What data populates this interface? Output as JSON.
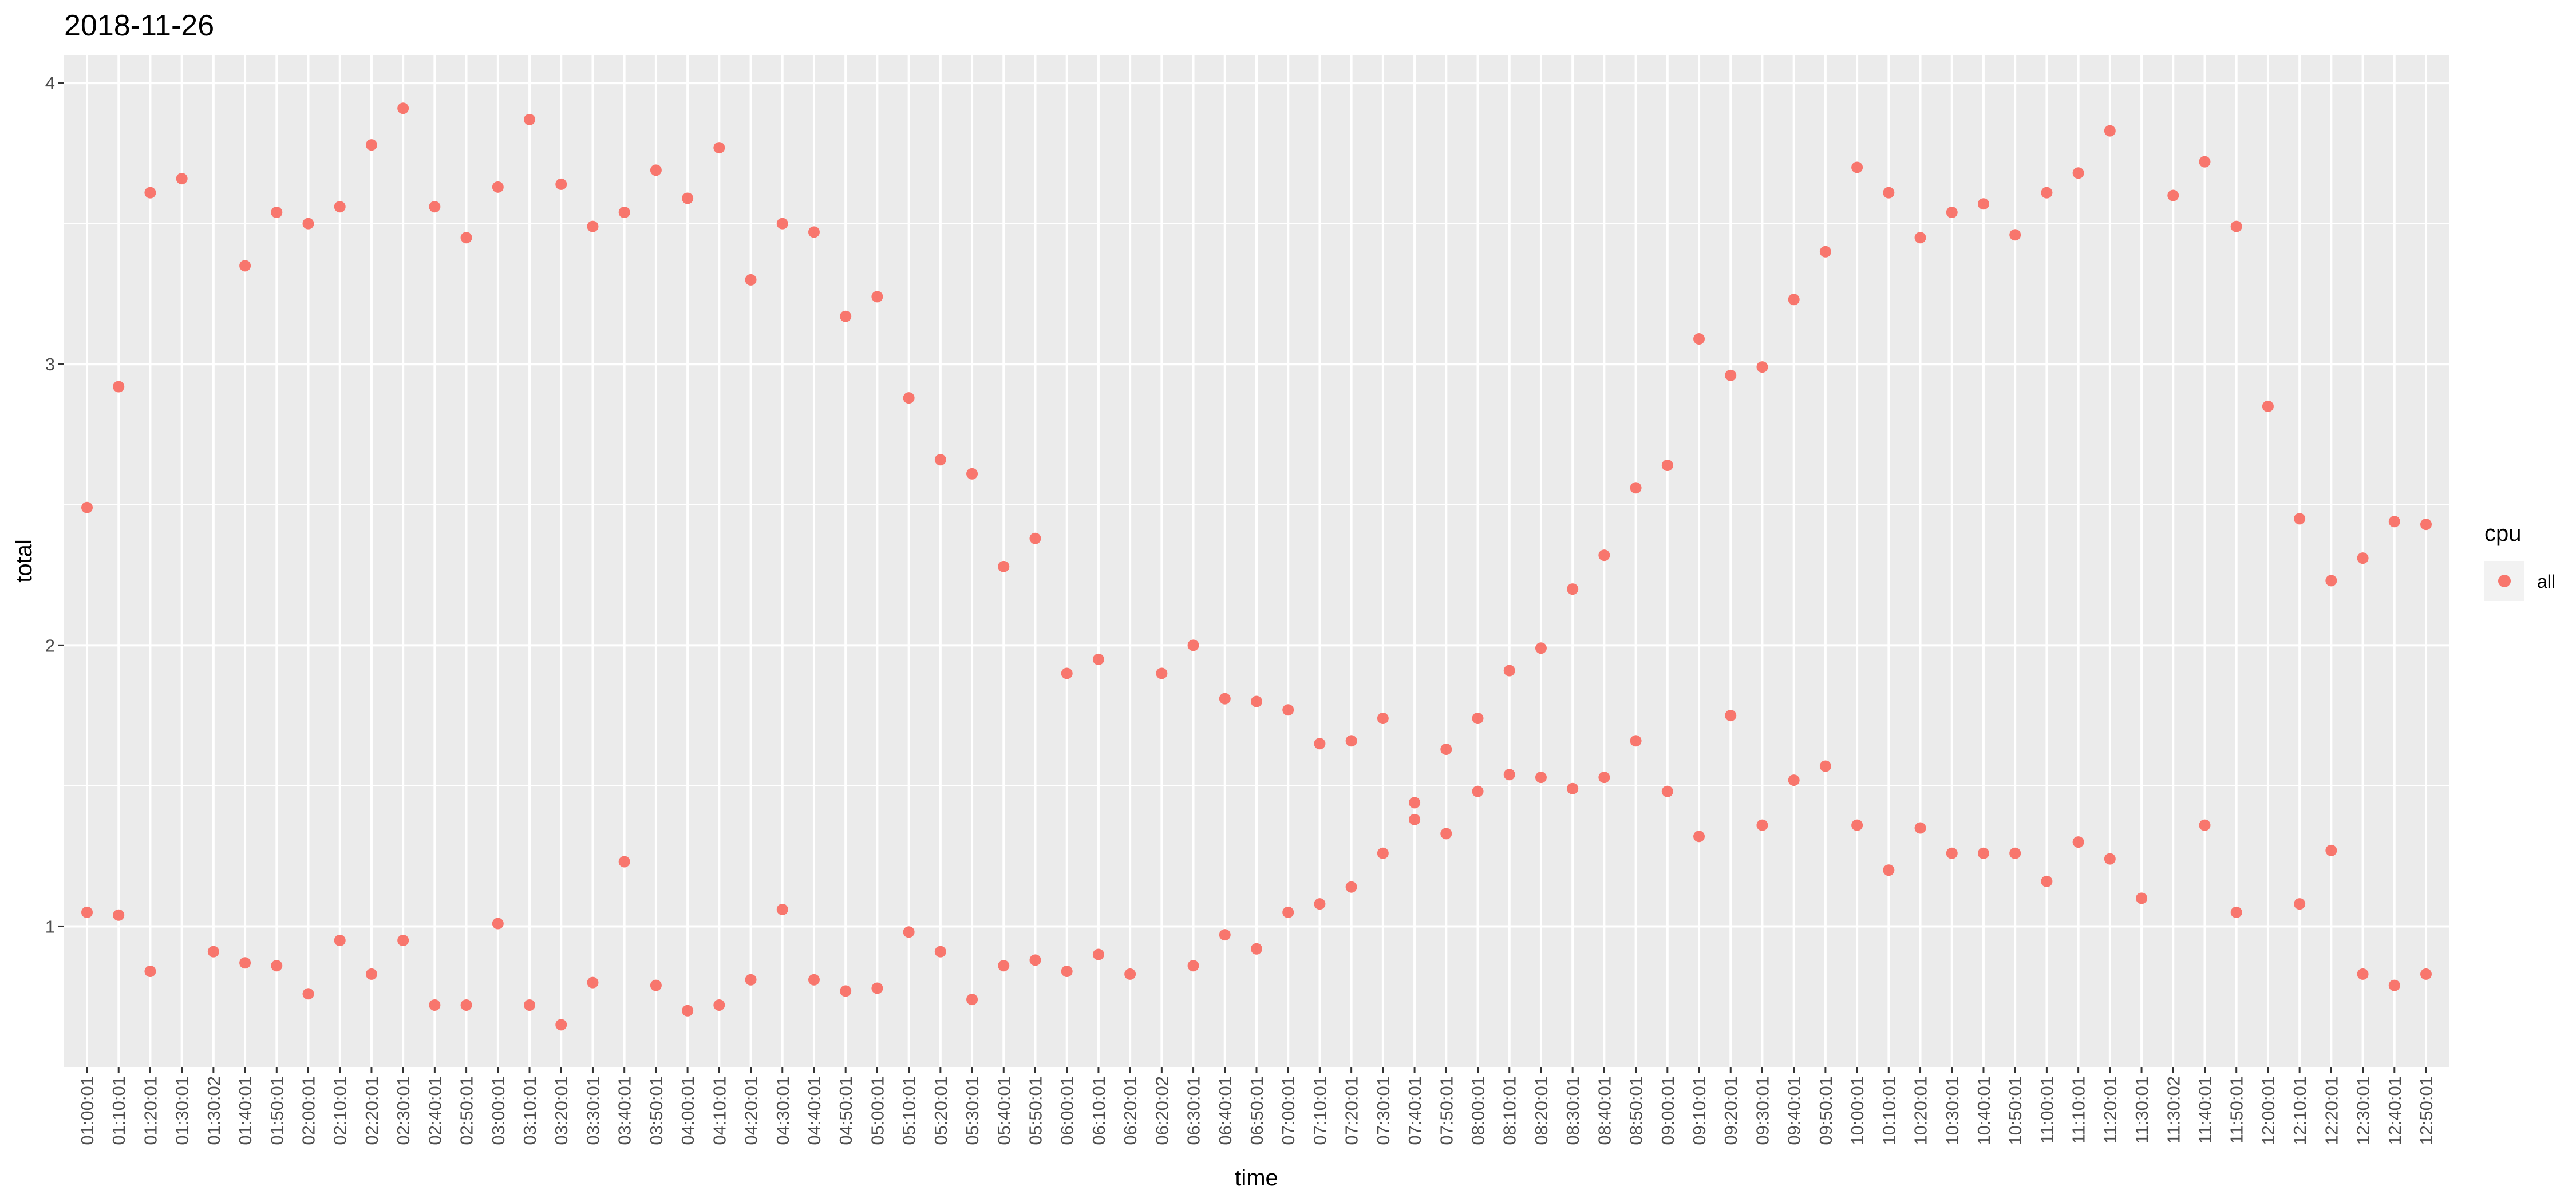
{
  "chart_data": {
    "type": "scatter",
    "title": "2018-11-26",
    "xlabel": "time",
    "ylabel": "total",
    "x_categories": [
      "01:00:01",
      "01:10:01",
      "01:20:01",
      "01:30:01",
      "01:30:02",
      "01:40:01",
      "01:50:01",
      "02:00:01",
      "02:10:01",
      "02:20:01",
      "02:30:01",
      "02:40:01",
      "02:50:01",
      "03:00:01",
      "03:10:01",
      "03:20:01",
      "03:30:01",
      "03:40:01",
      "03:50:01",
      "04:00:01",
      "04:10:01",
      "04:20:01",
      "04:30:01",
      "04:40:01",
      "04:50:01",
      "05:00:01",
      "05:10:01",
      "05:20:01",
      "05:30:01",
      "05:40:01",
      "05:50:01",
      "06:00:01",
      "06:10:01",
      "06:20:01",
      "06:20:02",
      "06:30:01",
      "06:40:01",
      "06:50:01",
      "07:00:01",
      "07:10:01",
      "07:20:01",
      "07:30:01",
      "07:40:01",
      "07:50:01",
      "08:00:01",
      "08:10:01",
      "08:20:01",
      "08:30:01",
      "08:40:01",
      "08:50:01",
      "09:00:01",
      "09:10:01",
      "09:20:01",
      "09:30:01",
      "09:40:01",
      "09:50:01",
      "10:00:01",
      "10:10:01",
      "10:20:01",
      "10:30:01",
      "10:40:01",
      "10:50:01",
      "11:00:01",
      "11:10:01",
      "11:20:01",
      "11:30:01",
      "11:30:02",
      "11:40:01",
      "11:50:01",
      "12:00:01",
      "12:10:01",
      "12:20:01",
      "12:30:01",
      "12:40:01",
      "12:50:01"
    ],
    "y_ticks": [
      1,
      2,
      3,
      4
    ],
    "ylim": [
      0.5,
      4.1
    ],
    "grid": true,
    "legend": {
      "title": "cpu",
      "position": "right",
      "entries": [
        "all"
      ]
    },
    "series": [
      {
        "name": "all",
        "color": "#F8766D",
        "points": [
          [
            "01:00:01",
            2.49
          ],
          [
            "01:00:01",
            1.05
          ],
          [
            "01:10:01",
            2.92
          ],
          [
            "01:10:01",
            1.04
          ],
          [
            "01:20:01",
            3.61
          ],
          [
            "01:20:01",
            0.84
          ],
          [
            "01:30:01",
            3.66
          ],
          [
            "01:30:02",
            0.91
          ],
          [
            "01:40:01",
            3.35
          ],
          [
            "01:40:01",
            0.87
          ],
          [
            "01:50:01",
            3.54
          ],
          [
            "01:50:01",
            0.86
          ],
          [
            "02:00:01",
            3.5
          ],
          [
            "02:00:01",
            0.76
          ],
          [
            "02:10:01",
            3.56
          ],
          [
            "02:10:01",
            0.95
          ],
          [
            "02:20:01",
            3.78
          ],
          [
            "02:20:01",
            0.83
          ],
          [
            "02:30:01",
            3.91
          ],
          [
            "02:30:01",
            0.95
          ],
          [
            "02:40:01",
            3.56
          ],
          [
            "02:40:01",
            0.72
          ],
          [
            "02:50:01",
            3.45
          ],
          [
            "02:50:01",
            0.72
          ],
          [
            "03:00:01",
            3.63
          ],
          [
            "03:00:01",
            1.01
          ],
          [
            "03:10:01",
            3.87
          ],
          [
            "03:10:01",
            0.72
          ],
          [
            "03:20:01",
            3.64
          ],
          [
            "03:20:01",
            0.65
          ],
          [
            "03:30:01",
            3.49
          ],
          [
            "03:30:01",
            0.8
          ],
          [
            "03:40:01",
            3.54
          ],
          [
            "03:40:01",
            1.23
          ],
          [
            "03:50:01",
            3.69
          ],
          [
            "03:50:01",
            0.79
          ],
          [
            "04:00:01",
            3.59
          ],
          [
            "04:00:01",
            0.7
          ],
          [
            "04:10:01",
            3.77
          ],
          [
            "04:10:01",
            0.72
          ],
          [
            "04:20:01",
            3.3
          ],
          [
            "04:20:01",
            0.81
          ],
          [
            "04:30:01",
            3.5
          ],
          [
            "04:30:01",
            1.06
          ],
          [
            "04:40:01",
            3.47
          ],
          [
            "04:40:01",
            0.81
          ],
          [
            "04:50:01",
            3.17
          ],
          [
            "04:50:01",
            0.77
          ],
          [
            "05:00:01",
            3.24
          ],
          [
            "05:00:01",
            0.78
          ],
          [
            "05:10:01",
            2.88
          ],
          [
            "05:10:01",
            0.98
          ],
          [
            "05:20:01",
            2.66
          ],
          [
            "05:20:01",
            0.91
          ],
          [
            "05:30:01",
            2.61
          ],
          [
            "05:30:01",
            0.74
          ],
          [
            "05:40:01",
            2.28
          ],
          [
            "05:40:01",
            0.86
          ],
          [
            "05:50:01",
            2.38
          ],
          [
            "05:50:01",
            0.88
          ],
          [
            "06:00:01",
            1.9
          ],
          [
            "06:00:01",
            0.84
          ],
          [
            "06:10:01",
            1.95
          ],
          [
            "06:10:01",
            0.9
          ],
          [
            "06:20:01",
            0.83
          ],
          [
            "06:20:02",
            1.9
          ],
          [
            "06:30:01",
            2.0
          ],
          [
            "06:30:01",
            0.86
          ],
          [
            "06:40:01",
            1.81
          ],
          [
            "06:40:01",
            0.97
          ],
          [
            "06:50:01",
            1.8
          ],
          [
            "06:50:01",
            0.92
          ],
          [
            "07:00:01",
            1.77
          ],
          [
            "07:00:01",
            1.05
          ],
          [
            "07:10:01",
            1.65
          ],
          [
            "07:10:01",
            1.08
          ],
          [
            "07:20:01",
            1.66
          ],
          [
            "07:20:01",
            1.14
          ],
          [
            "07:30:01",
            1.74
          ],
          [
            "07:30:01",
            1.26
          ],
          [
            "07:40:01",
            1.44
          ],
          [
            "07:40:01",
            1.38
          ],
          [
            "07:50:01",
            1.63
          ],
          [
            "07:50:01",
            1.33
          ],
          [
            "08:00:01",
            1.74
          ],
          [
            "08:00:01",
            1.48
          ],
          [
            "08:10:01",
            1.91
          ],
          [
            "08:10:01",
            1.54
          ],
          [
            "08:20:01",
            1.99
          ],
          [
            "08:20:01",
            1.53
          ],
          [
            "08:30:01",
            2.2
          ],
          [
            "08:30:01",
            1.49
          ],
          [
            "08:40:01",
            2.32
          ],
          [
            "08:40:01",
            1.53
          ],
          [
            "08:50:01",
            2.56
          ],
          [
            "08:50:01",
            1.66
          ],
          [
            "09:00:01",
            2.64
          ],
          [
            "09:00:01",
            1.48
          ],
          [
            "09:10:01",
            3.09
          ],
          [
            "09:10:01",
            1.32
          ],
          [
            "09:20:01",
            2.96
          ],
          [
            "09:20:01",
            1.75
          ],
          [
            "09:30:01",
            2.99
          ],
          [
            "09:30:01",
            1.36
          ],
          [
            "09:40:01",
            3.23
          ],
          [
            "09:40:01",
            1.52
          ],
          [
            "09:50:01",
            3.4
          ],
          [
            "09:50:01",
            1.57
          ],
          [
            "10:00:01",
            3.7
          ],
          [
            "10:00:01",
            1.36
          ],
          [
            "10:10:01",
            3.61
          ],
          [
            "10:10:01",
            1.2
          ],
          [
            "10:20:01",
            3.45
          ],
          [
            "10:20:01",
            1.35
          ],
          [
            "10:30:01",
            3.54
          ],
          [
            "10:30:01",
            1.26
          ],
          [
            "10:40:01",
            3.57
          ],
          [
            "10:40:01",
            1.26
          ],
          [
            "10:50:01",
            3.46
          ],
          [
            "10:50:01",
            1.26
          ],
          [
            "11:00:01",
            3.61
          ],
          [
            "11:00:01",
            1.16
          ],
          [
            "11:10:01",
            3.68
          ],
          [
            "11:10:01",
            1.3
          ],
          [
            "11:20:01",
            3.83
          ],
          [
            "11:20:01",
            1.24
          ],
          [
            "11:30:01",
            1.1
          ],
          [
            "11:30:02",
            3.6
          ],
          [
            "11:40:01",
            3.72
          ],
          [
            "11:40:01",
            1.36
          ],
          [
            "11:50:01",
            3.49
          ],
          [
            "11:50:01",
            1.05
          ],
          [
            "12:00:01",
            2.85
          ],
          [
            "12:10:01",
            2.45
          ],
          [
            "12:10:01",
            1.08
          ],
          [
            "12:20:01",
            2.23
          ],
          [
            "12:20:01",
            1.27
          ],
          [
            "12:30:01",
            2.31
          ],
          [
            "12:30:01",
            0.83
          ],
          [
            "12:40:01",
            2.44
          ],
          [
            "12:40:01",
            0.79
          ],
          [
            "12:50:01",
            2.43
          ],
          [
            "12:50:01",
            0.83
          ]
        ]
      }
    ]
  }
}
